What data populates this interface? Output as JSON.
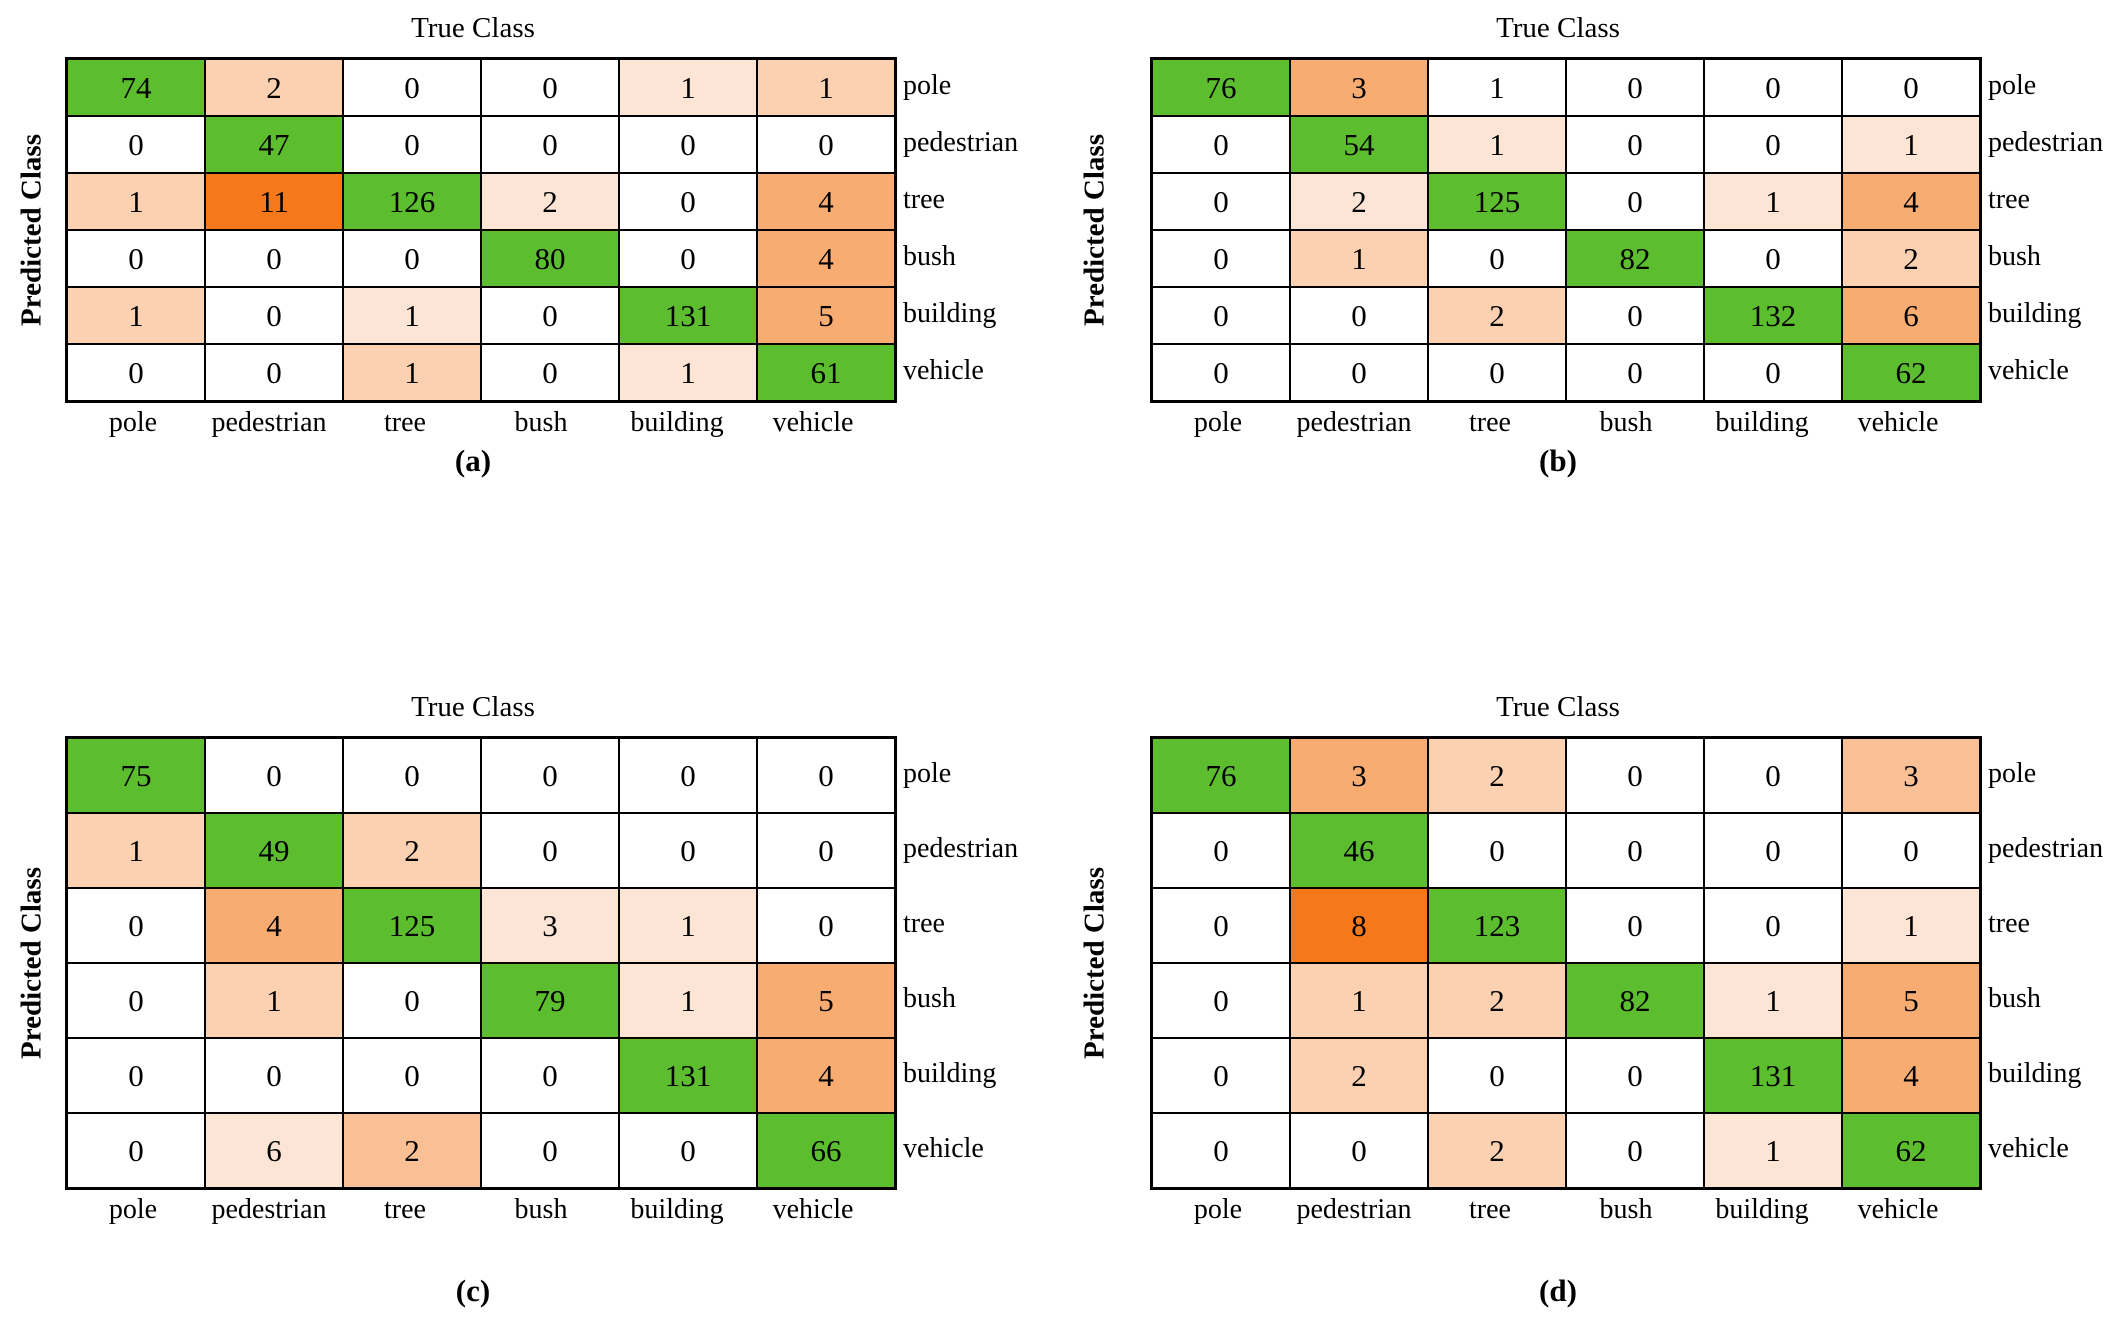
{
  "figure": {
    "x_axis_title": "True Class",
    "y_axis_title": "Predicted Class",
    "classes": [
      "pole",
      "pedestrian",
      "tree",
      "bush",
      "building",
      "vehicle"
    ],
    "palette": {
      "white": "#FFFFFF",
      "orange_very_light": "#FCE5D4",
      "orange_light": "#FBD1B1",
      "orange_medium_light": "#F9C096",
      "orange_medium": "#F8AC72",
      "orange_strong": "#F5791A",
      "diagonal_green": "#5CBE2F",
      "grid_line": "#000000"
    },
    "panels": [
      {
        "caption": "(a)",
        "shades": [
          [
            "G",
            "o2",
            "W",
            "W",
            "o1",
            "o2"
          ],
          [
            "W",
            "G",
            "W",
            "W",
            "W",
            "W"
          ],
          [
            "o2",
            "o5",
            "G",
            "o1",
            "W",
            "o4"
          ],
          [
            "W",
            "W",
            "W",
            "G",
            "W",
            "o4"
          ],
          [
            "o2",
            "W",
            "o1",
            "W",
            "G",
            "o4"
          ],
          [
            "W",
            "W",
            "o2",
            "W",
            "o1",
            "G"
          ]
        ]
      },
      {
        "caption": "(b)",
        "shades": [
          [
            "G",
            "o4",
            "W",
            "W",
            "W",
            "W"
          ],
          [
            "W",
            "G",
            "o1",
            "W",
            "W",
            "o1"
          ],
          [
            "W",
            "o1",
            "G",
            "W",
            "o1",
            "o4"
          ],
          [
            "W",
            "o2",
            "W",
            "G",
            "W",
            "o2"
          ],
          [
            "W",
            "W",
            "o2",
            "W",
            "G",
            "o4"
          ],
          [
            "W",
            "W",
            "W",
            "W",
            "W",
            "G"
          ]
        ]
      },
      {
        "caption": "(c)",
        "shades": [
          [
            "G",
            "W",
            "W",
            "W",
            "W",
            "W"
          ],
          [
            "o2",
            "G",
            "o2",
            "W",
            "W",
            "W"
          ],
          [
            "W",
            "o4",
            "G",
            "o1",
            "o1",
            "W"
          ],
          [
            "W",
            "o2",
            "W",
            "G",
            "o1",
            "o4"
          ],
          [
            "W",
            "W",
            "W",
            "W",
            "G",
            "o4"
          ],
          [
            "W",
            "o1",
            "o3",
            "W",
            "W",
            "G"
          ]
        ]
      },
      {
        "caption": "(d)",
        "shades": [
          [
            "G",
            "o4",
            "o2",
            "W",
            "W",
            "o3"
          ],
          [
            "W",
            "G",
            "W",
            "W",
            "W",
            "W"
          ],
          [
            "W",
            "o5",
            "G",
            "W",
            "W",
            "o1"
          ],
          [
            "W",
            "o2",
            "o2",
            "G",
            "o1",
            "o4"
          ],
          [
            "W",
            "o2",
            "W",
            "W",
            "G",
            "o4"
          ],
          [
            "W",
            "W",
            "o2",
            "W",
            "o1",
            "G"
          ]
        ]
      }
    ]
  },
  "chart_data": [
    {
      "type": "heatmap",
      "panel": "(a)",
      "x_axis": "True Class",
      "y_axis": "Predicted Class",
      "x_categories": [
        "pole",
        "pedestrian",
        "tree",
        "bush",
        "building",
        "vehicle"
      ],
      "y_categories": [
        "pole",
        "pedestrian",
        "tree",
        "bush",
        "building",
        "vehicle"
      ],
      "values": [
        [
          74,
          2,
          0,
          0,
          1,
          1
        ],
        [
          0,
          47,
          0,
          0,
          0,
          0
        ],
        [
          1,
          11,
          126,
          2,
          0,
          4
        ],
        [
          0,
          0,
          0,
          80,
          0,
          4
        ],
        [
          1,
          0,
          1,
          0,
          131,
          5
        ],
        [
          0,
          0,
          1,
          0,
          1,
          61
        ]
      ]
    },
    {
      "type": "heatmap",
      "panel": "(b)",
      "x_axis": "True Class",
      "y_axis": "Predicted Class",
      "x_categories": [
        "pole",
        "pedestrian",
        "tree",
        "bush",
        "building",
        "vehicle"
      ],
      "y_categories": [
        "pole",
        "pedestrian",
        "tree",
        "bush",
        "building",
        "vehicle"
      ],
      "values": [
        [
          76,
          3,
          1,
          0,
          0,
          0
        ],
        [
          0,
          54,
          1,
          0,
          0,
          1
        ],
        [
          0,
          2,
          125,
          0,
          1,
          4
        ],
        [
          0,
          1,
          0,
          82,
          0,
          2
        ],
        [
          0,
          0,
          2,
          0,
          132,
          6
        ],
        [
          0,
          0,
          0,
          0,
          0,
          62
        ]
      ]
    },
    {
      "type": "heatmap",
      "panel": "(c)",
      "x_axis": "True Class",
      "y_axis": "Predicted Class",
      "x_categories": [
        "pole",
        "pedestrian",
        "tree",
        "bush",
        "building",
        "vehicle"
      ],
      "y_categories": [
        "pole",
        "pedestrian",
        "tree",
        "bush",
        "building",
        "vehicle"
      ],
      "values": [
        [
          75,
          0,
          0,
          0,
          0,
          0
        ],
        [
          1,
          49,
          2,
          0,
          0,
          0
        ],
        [
          0,
          4,
          125,
          3,
          1,
          0
        ],
        [
          0,
          1,
          0,
          79,
          1,
          5
        ],
        [
          0,
          0,
          0,
          0,
          131,
          4
        ],
        [
          0,
          6,
          2,
          0,
          0,
          66
        ]
      ]
    },
    {
      "type": "heatmap",
      "panel": "(d)",
      "x_axis": "True Class",
      "y_axis": "Predicted Class",
      "x_categories": [
        "pole",
        "pedestrian",
        "tree",
        "bush",
        "building",
        "vehicle"
      ],
      "y_categories": [
        "pole",
        "pedestrian",
        "tree",
        "bush",
        "building",
        "vehicle"
      ],
      "values": [
        [
          76,
          3,
          2,
          0,
          0,
          3
        ],
        [
          0,
          46,
          0,
          0,
          0,
          0
        ],
        [
          0,
          8,
          123,
          0,
          0,
          1
        ],
        [
          0,
          1,
          2,
          82,
          1,
          5
        ],
        [
          0,
          2,
          0,
          0,
          131,
          4
        ],
        [
          0,
          0,
          2,
          0,
          1,
          62
        ]
      ]
    }
  ]
}
